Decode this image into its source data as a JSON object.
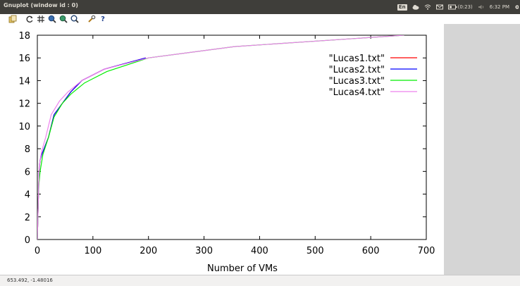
{
  "window": {
    "title": "Gnuplot (window id : 0)"
  },
  "tray": {
    "language": "En",
    "battery": "(0:23)",
    "time": "6:32 PM",
    "icons": [
      "cloud-icon",
      "wifi-icon",
      "mail-icon",
      "battery-icon",
      "volume-icon",
      "gear-icon"
    ]
  },
  "toolbar": {
    "icons": [
      "copy-clipboard-icon",
      "replot-icon",
      "grid-icon",
      "zoom-previous-icon",
      "zoom-next-icon",
      "autoscale-icon",
      "settings-icon",
      "help-icon"
    ],
    "help_label": "?"
  },
  "status": {
    "coords": "653.492, -1.48016"
  },
  "colors": {
    "titlebar": "#3f3e3a",
    "side_panel": "#d5d5d5",
    "Lucas1": "#ff0000",
    "Lucas2": "#0000ff",
    "Lucas3": "#00ee00",
    "Lucas4": "#ee82ee"
  },
  "chart_data": {
    "type": "line",
    "xlabel": "Number of VMs",
    "ylabel": "",
    "xlim": [
      0,
      700
    ],
    "ylim": [
      0,
      18
    ],
    "x_ticks": [
      0,
      100,
      200,
      300,
      400,
      500,
      600,
      700
    ],
    "y_ticks": [
      0,
      2,
      4,
      6,
      8,
      10,
      12,
      14,
      16,
      18
    ],
    "grid": false,
    "legend": "top-right",
    "series": [
      {
        "name": "\"Lucas1.txt\"",
        "color": "#ff0000",
        "x": [
          0,
          1,
          2,
          3,
          5,
          8,
          12,
          20,
          30,
          45,
          60,
          80,
          120,
          195
        ],
        "y": [
          0,
          2,
          4,
          6,
          7,
          7.5,
          8,
          9,
          11,
          12,
          13,
          14,
          15,
          16
        ]
      },
      {
        "name": "\"Lucas2.txt\"",
        "color": "#0000ff",
        "x": [
          0,
          1,
          2,
          3,
          5,
          8,
          12,
          20,
          30,
          45,
          60,
          80,
          120,
          195
        ],
        "y": [
          0,
          2,
          4,
          6,
          7,
          7.5,
          8,
          9,
          11,
          12,
          13,
          14,
          15,
          16
        ]
      },
      {
        "name": "\"Lucas3.txt\"",
        "color": "#00ee00",
        "x": [
          0,
          1,
          2,
          3,
          5,
          10,
          20,
          30,
          45,
          60,
          85,
          125,
          200,
          355,
          660
        ],
        "y": [
          0,
          2,
          4,
          5,
          6,
          7.5,
          9,
          10.8,
          12,
          12.8,
          13.8,
          14.8,
          16,
          17,
          18
        ]
      },
      {
        "name": "\"Lucas4.txt\"",
        "color": "#ee82ee",
        "x": [
          0,
          1,
          2,
          3,
          5,
          8,
          15,
          25,
          40,
          55,
          80,
          120,
          200,
          355,
          660
        ],
        "y": [
          0,
          2,
          4,
          6,
          7,
          7.8,
          9,
          11,
          12.2,
          13,
          14,
          15,
          16,
          17,
          18
        ]
      }
    ]
  }
}
